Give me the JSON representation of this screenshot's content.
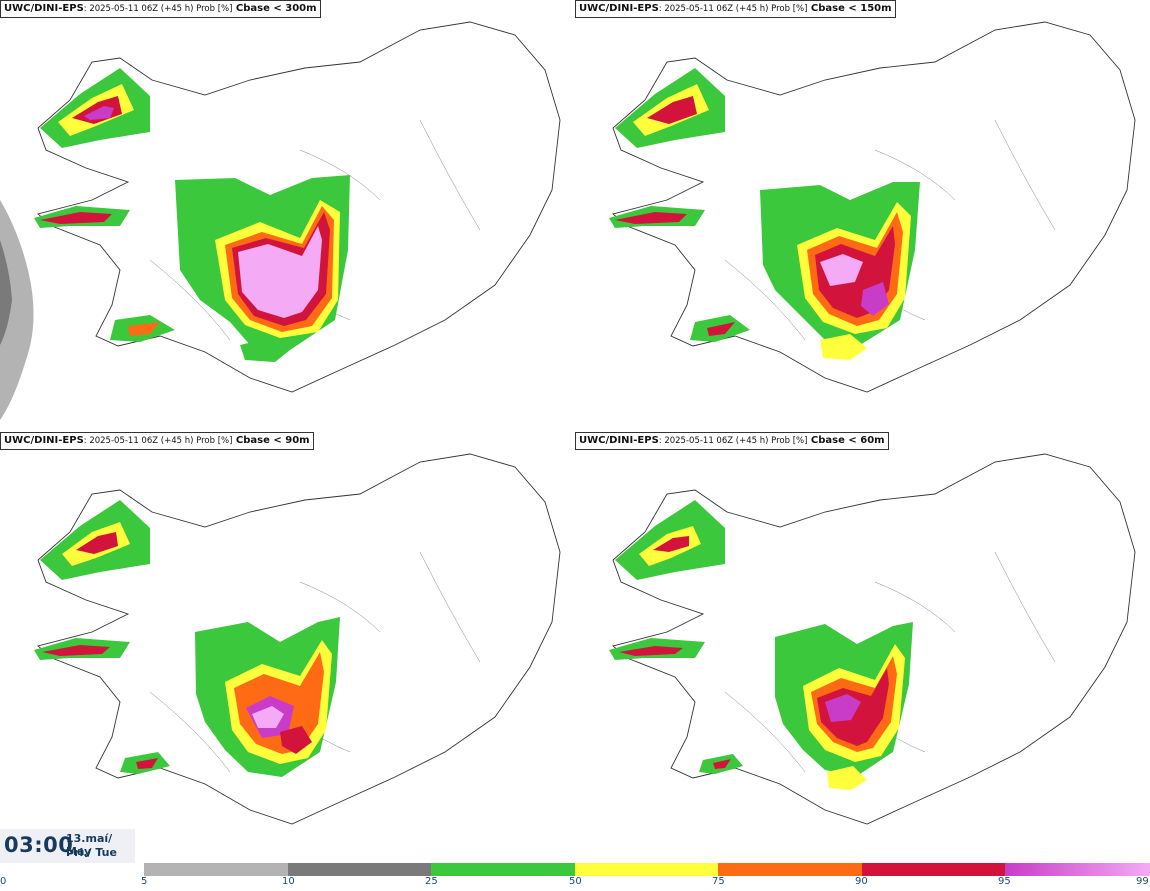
{
  "panels": [
    {
      "model": "UWC/DINI-EPS",
      "run": ": 2025-05-11 06Z (+45 h) Prob [%]",
      "variable": " Cbase < 300m"
    },
    {
      "model": "UWC/DINI-EPS",
      "run": ": 2025-05-11 06Z (+45 h) Prob [%]",
      "variable": " Cbase < 150m"
    },
    {
      "model": "UWC/DINI-EPS",
      "run": ": 2025-05-11 06Z (+45 h) Prob [%]",
      "variable": " Cbase < 90m"
    },
    {
      "model": "UWC/DINI-EPS",
      "run": ": 2025-05-11 06Z (+45 h) Prob [%]",
      "variable": " Cbase < 60m"
    }
  ],
  "valid_time": {
    "time": "03:00",
    "date_line1": "13.maí/ May",
    "date_line2": "Þri./ Tue"
  },
  "colorbar": {
    "ticks": [
      "0",
      "5",
      "10",
      "25",
      "50",
      "75",
      "90",
      "95",
      "99"
    ],
    "bins": [
      {
        "from": 5,
        "to": 10,
        "color": "#b3b3b3"
      },
      {
        "from": 10,
        "to": 25,
        "color": "#7a7a7a"
      },
      {
        "from": 25,
        "to": 50,
        "color": "#3cc83c"
      },
      {
        "from": 50,
        "to": 75,
        "color": "#ffff3c"
      },
      {
        "from": 75,
        "to": 90,
        "color": "#ff6a14"
      },
      {
        "from": 90,
        "to": 95,
        "color": "#d2143c"
      },
      {
        "from": 95,
        "to": 99,
        "color": "#c83cc8",
        "to_color": "#f5aaf5"
      }
    ]
  }
}
